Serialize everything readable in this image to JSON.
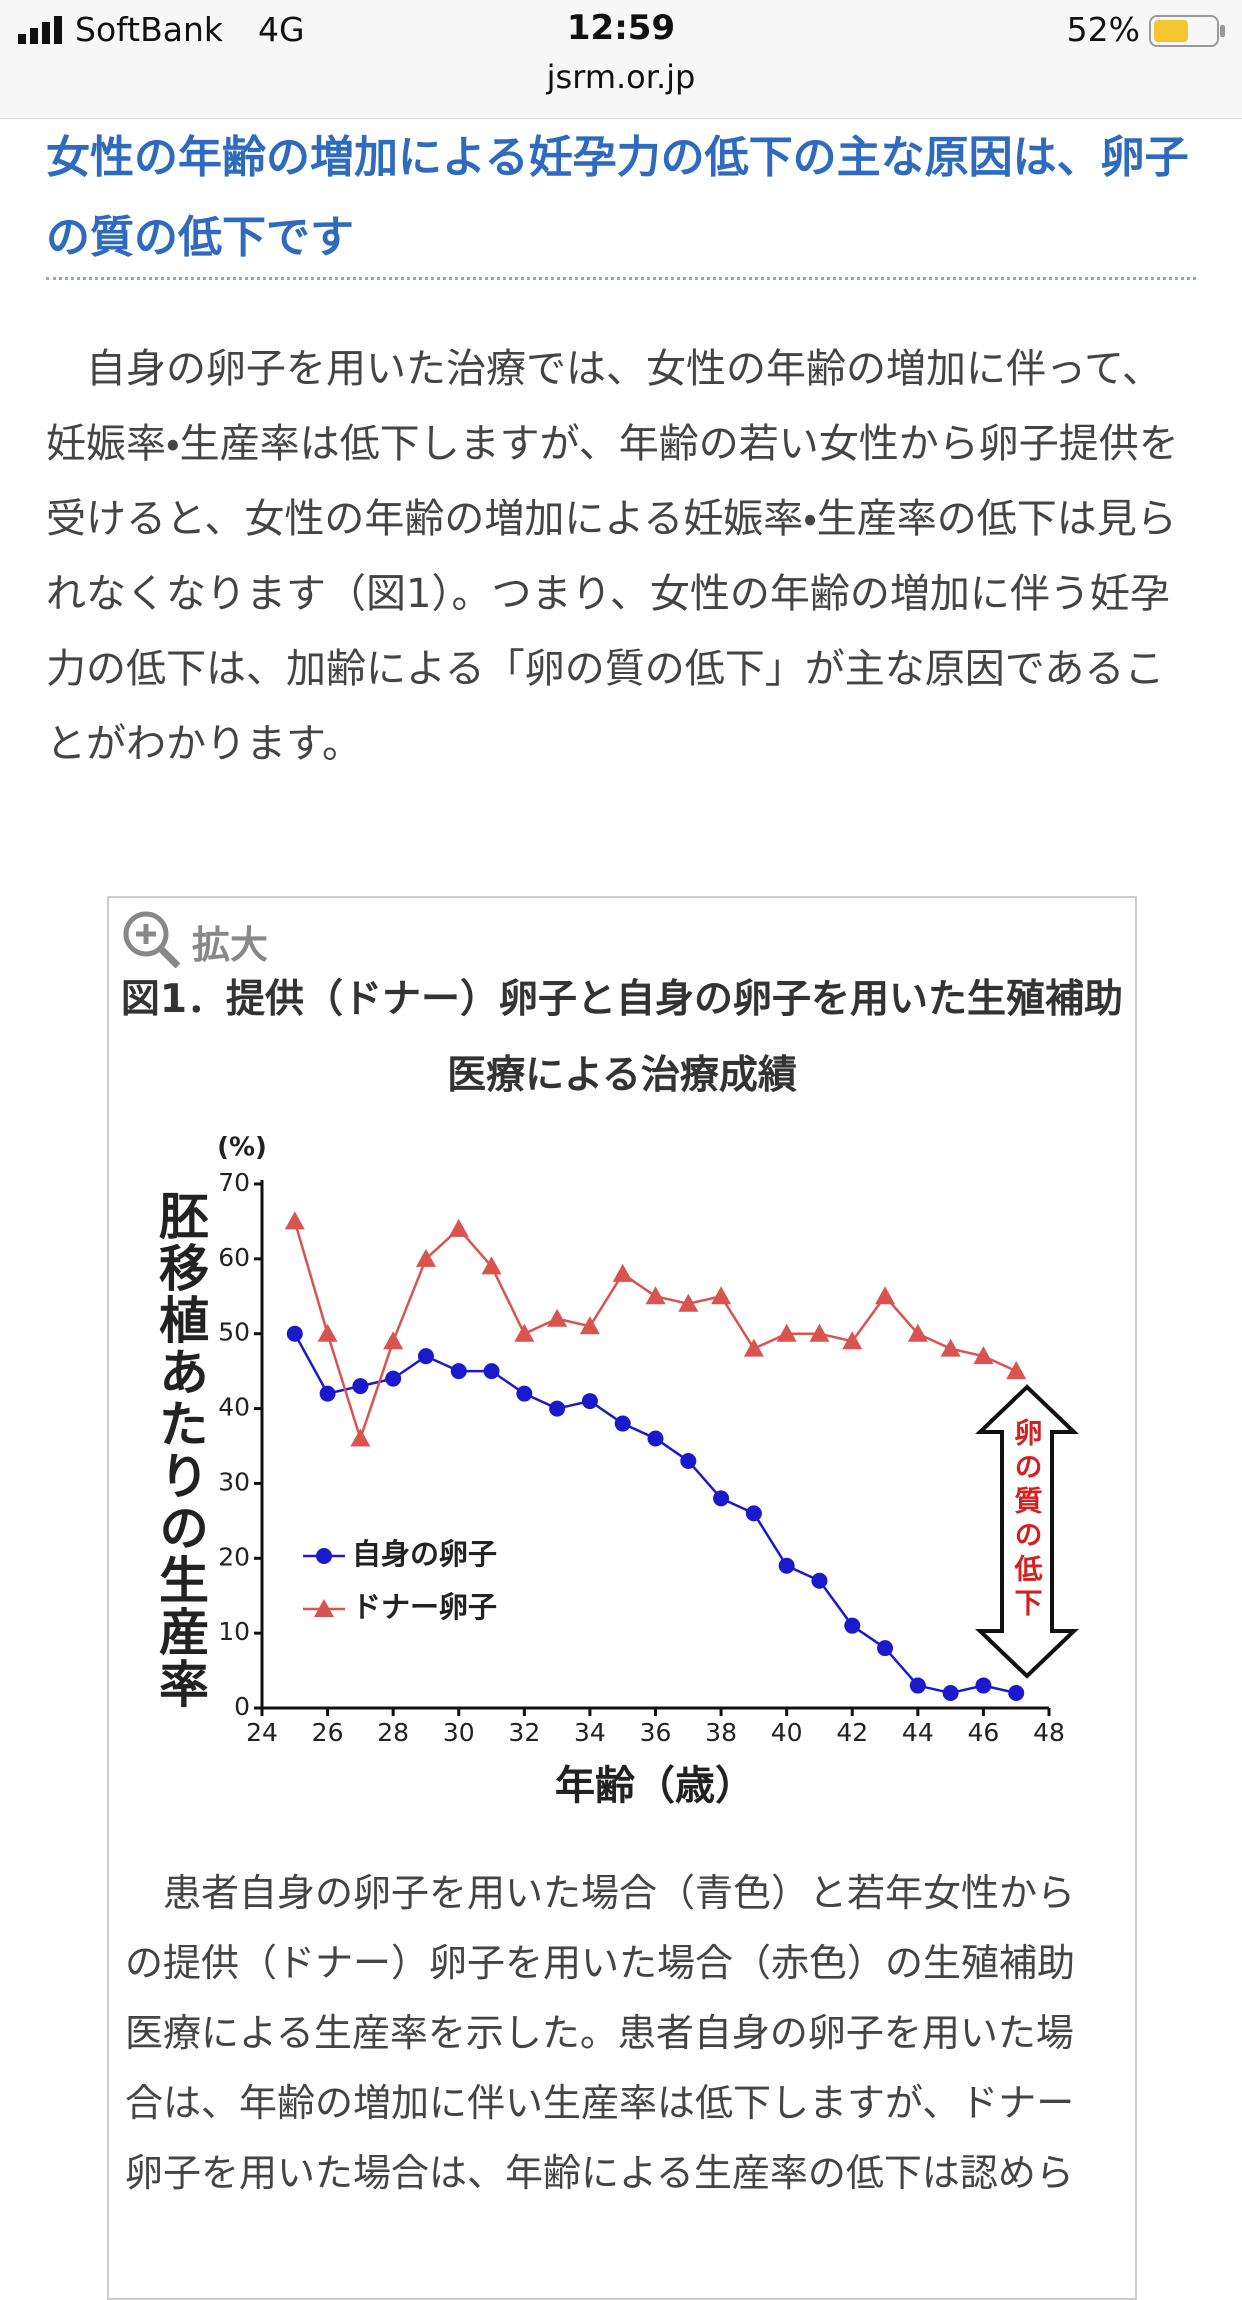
{
  "status_bar": {
    "carrier": "SoftBank",
    "network": "4G",
    "time": "12:59",
    "url": "jsrm.or.jp",
    "battery": "52%"
  },
  "header": {
    "title": "女性の年齢の増加による妊孕力の低下の主な原因は、卵子の質の低下です"
  },
  "body": {
    "paragraph": "自身の卵子を用いた治療では、女性の年齢の増加に伴って、妊娠率・生産率は低下しますが、年齢の若い女性から卵子提供を受けると、女性の年齢の増加による妊娠率・生産率の低下は見られなくなります（図1）。つまり、女性の年齢の増加に伴う妊孕力の低下は、加齢による「卵の質の低下」が主な原因であることがわかります。"
  },
  "figure": {
    "zoom_label": "拡大",
    "title": "図1．提供（ドナー）卵子と自身の卵子を用いた生殖補助医療による治療成績",
    "caption": "患者自身の卵子を用いた場合（青色）と若年女性からの提供（ドナー）卵子を用いた場合（赤色）の生殖補助医療による生産率を示した。患者自身の卵子を用いた場合は、年齢の増加に伴い生産率は低下しますが、ドナー卵子を用いた場合は、年齢による生産率の低下は認めら"
  },
  "chart_data": {
    "type": "line",
    "y_label": "胚移植あたりの生産率",
    "y_unit": "(%)",
    "x_label": "年齢（歳）",
    "annotation": "卵の質の低下",
    "x": [
      25,
      26,
      27,
      28,
      29,
      30,
      31,
      32,
      33,
      34,
      35,
      36,
      37,
      38,
      39,
      40,
      41,
      42,
      43,
      44,
      45,
      46,
      47
    ],
    "series": [
      {
        "name": "自身の卵子",
        "color": "#1a1acc",
        "marker": "circle",
        "values": [
          50,
          42,
          43,
          44,
          47,
          45,
          45,
          42,
          40,
          41,
          38,
          36,
          33,
          28,
          26,
          19,
          17,
          11,
          8,
          3,
          2,
          3,
          2
        ]
      },
      {
        "name": "ドナー卵子",
        "color": "#d9534f",
        "marker": "triangle",
        "values": [
          65,
          50,
          36,
          49,
          60,
          64,
          59,
          50,
          52,
          51,
          58,
          55,
          54,
          55,
          48,
          50,
          50,
          49,
          55,
          50,
          48,
          47,
          45
        ]
      }
    ],
    "xlim": [
      24,
      48
    ],
    "xticks": [
      24,
      26,
      28,
      30,
      32,
      34,
      36,
      38,
      40,
      42,
      44,
      46,
      48
    ],
    "ylim": [
      0,
      70
    ],
    "yticks": [
      0,
      10,
      20,
      30,
      40,
      50,
      60,
      70
    ],
    "grid": false
  }
}
